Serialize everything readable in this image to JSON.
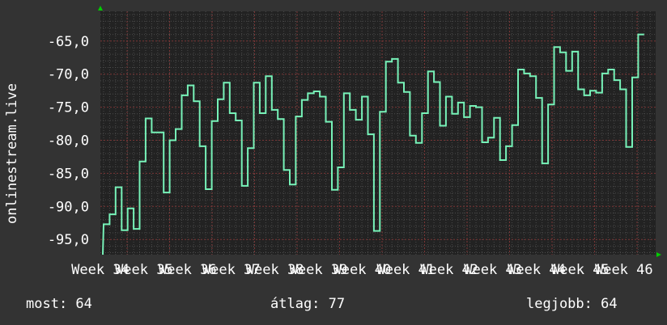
{
  "chart_data": {
    "type": "line",
    "step": true,
    "ylabel": "onlinestream.live",
    "ylim": [
      -97.3,
      -60.5
    ],
    "y_ticks": [
      -65,
      -70,
      -75,
      -80,
      -85,
      -90,
      -95
    ],
    "y_tick_labels": [
      "-65,0",
      "-70,0",
      "-75,0",
      "-80,0",
      "-85,0",
      "-90,0",
      "-95,0"
    ],
    "x_tick_labels": [
      "Week 34",
      "Week 35",
      "Week 36",
      "Week 37",
      "Week 38",
      "Week 39",
      "Week 40",
      "Week 41",
      "Week 42",
      "Week 43",
      "Week 44",
      "Week 45",
      "Week 46"
    ],
    "grid": true,
    "series": [
      {
        "color": "#77f2b8",
        "values": [
          -92.7,
          -91.2,
          -87.1,
          -93.6,
          -90.3,
          -93.4,
          -83.2,
          -76.7,
          -78.8,
          -78.8,
          -87.9,
          -80.0,
          -78.3,
          -73.2,
          -71.7,
          -74.1,
          -80.9,
          -87.4,
          -77.1,
          -73.8,
          -71.3,
          -75.9,
          -77.0,
          -86.9,
          -81.2,
          -71.3,
          -75.9,
          -70.3,
          -75.4,
          -76.8,
          -84.5,
          -86.7,
          -76.4,
          -73.9,
          -72.9,
          -72.6,
          -73.4,
          -77.2,
          -87.5,
          -84.1,
          -72.9,
          -75.4,
          -76.9,
          -73.4,
          -79.1,
          -93.7,
          -75.7,
          -68.1,
          -67.7,
          -71.3,
          -72.7,
          -79.3,
          -80.4,
          -75.9,
          -69.6,
          -71.2,
          -77.8,
          -73.4,
          -76.0,
          -74.3,
          -76.5,
          -74.8,
          -75.0,
          -80.3,
          -79.6,
          -76.6,
          -83.0,
          -80.9,
          -77.7,
          -69.3,
          -69.9,
          -70.3,
          -73.6,
          -83.5,
          -74.6,
          -65.9,
          -66.7,
          -69.5,
          -66.6,
          -72.3,
          -73.2,
          -72.5,
          -72.8,
          -69.9,
          -69.3,
          -70.9,
          -72.3,
          -81.0,
          -70.5,
          -64.0
        ]
      }
    ]
  },
  "legend": {
    "current": "most: 64",
    "average": "átlag: 77",
    "max": "legjobb: 64"
  },
  "colors": {
    "background": "#333333",
    "plot_background": "#222222",
    "major_grid": "#7a3535",
    "minor_grid": "#4a4a4a",
    "axis_arrow": "#00cc00"
  }
}
